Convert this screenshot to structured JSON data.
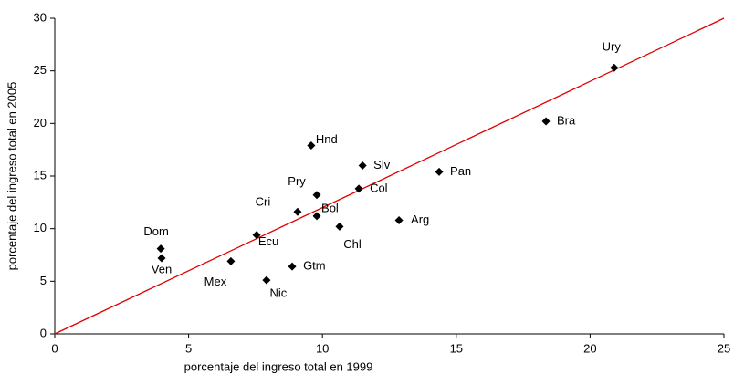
{
  "chart_data": {
    "type": "scatter",
    "x_label": "porcentaje del ingreso total en 1999",
    "y_label": "porcentaje del ingreso total en 2005",
    "labels": [
      "Ury",
      "Bra",
      "Pan",
      "Hnd",
      "Slv",
      "Col",
      "Pry",
      "Cri",
      "Bol",
      "Chl",
      "Arg",
      "Ecu",
      "Dom",
      "Ven",
      "Mex",
      "Gtm",
      "Nic"
    ],
    "x": [
      20.9,
      18.35,
      14.36,
      9.58,
      11.5,
      11.36,
      9.79,
      9.07,
      9.79,
      10.64,
      12.86,
      7.54,
      3.96,
      3.99,
      6.58,
      8.87,
      7.91
    ],
    "y": [
      25.3,
      20.2,
      15.4,
      17.9,
      16.0,
      13.8,
      13.2,
      11.6,
      11.2,
      10.2,
      10.8,
      9.4,
      8.1,
      7.2,
      6.9,
      6.4,
      5.1
    ],
    "color": "#000000",
    "reference_line": {
      "x": [
        0,
        25
      ],
      "y": [
        0,
        30
      ],
      "color": "#e00000"
    },
    "xlim": [
      0,
      25
    ],
    "ylim": [
      0,
      30
    ],
    "xticks": [
      0,
      5,
      10,
      15,
      20,
      25
    ],
    "yticks": [
      0,
      5,
      10,
      15,
      20,
      25,
      30
    ],
    "grid": false
  }
}
